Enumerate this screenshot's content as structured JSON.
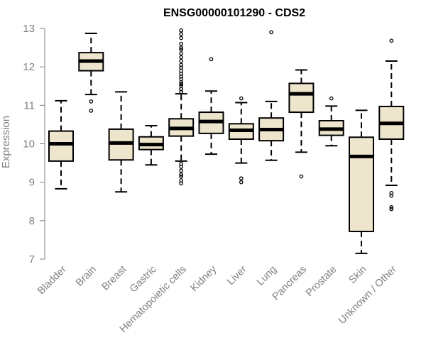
{
  "chart_data": {
    "type": "boxplot",
    "title": "ENSG00000101290 - CDS2",
    "xlabel": "",
    "ylabel": "Expression",
    "ylim": [
      7,
      13
    ],
    "yticks": [
      7,
      8,
      9,
      10,
      11,
      12,
      13
    ],
    "grid": false,
    "legend": "none",
    "colors": {
      "box_fill": "#ede6cc",
      "box_stroke": "#000000",
      "axis": "#808080",
      "label": "#808080"
    },
    "categories": [
      "Bladder",
      "Brain",
      "Breast",
      "Gastric",
      "Hematopoietic cells",
      "Kidney",
      "Liver",
      "Lung",
      "Pancreas",
      "Prostate",
      "Skin",
      "Unknown / Other"
    ],
    "boxes": [
      {
        "category": "Bladder",
        "whisker_low": 8.83,
        "q1": 9.55,
        "median": 10.0,
        "q3": 10.33,
        "whisker_high": 11.12,
        "outliers": []
      },
      {
        "category": "Brain",
        "whisker_low": 11.28,
        "q1": 11.9,
        "median": 12.15,
        "q3": 12.37,
        "whisker_high": 12.87,
        "outliers": [
          11.1,
          10.86
        ]
      },
      {
        "category": "Breast",
        "whisker_low": 8.75,
        "q1": 9.58,
        "median": 10.02,
        "q3": 10.38,
        "whisker_high": 11.35,
        "outliers": []
      },
      {
        "category": "Gastric",
        "whisker_low": 9.45,
        "q1": 9.85,
        "median": 9.98,
        "q3": 10.18,
        "whisker_high": 10.47,
        "outliers": []
      },
      {
        "category": "Hematopoietic cells",
        "whisker_low": 9.55,
        "q1": 10.2,
        "median": 10.4,
        "q3": 10.65,
        "whisker_high": 11.3,
        "outliers": [
          12.95,
          12.85,
          12.75,
          12.6,
          12.5,
          12.45,
          12.35,
          12.25,
          12.15,
          12.05,
          11.98,
          11.9,
          11.82,
          11.75,
          11.68,
          11.6,
          11.55,
          11.5,
          11.42,
          11.35,
          9.48,
          9.4,
          9.3,
          9.2,
          9.15,
          9.05,
          8.97
        ]
      },
      {
        "category": "Kidney",
        "whisker_low": 9.73,
        "q1": 10.27,
        "median": 10.58,
        "q3": 10.82,
        "whisker_high": 11.37,
        "outliers": [
          12.2
        ]
      },
      {
        "category": "Liver",
        "whisker_low": 9.5,
        "q1": 10.12,
        "median": 10.35,
        "q3": 10.52,
        "whisker_high": 11.07,
        "outliers": [
          11.18,
          9.1,
          9.0
        ]
      },
      {
        "category": "Lung",
        "whisker_low": 9.57,
        "q1": 10.08,
        "median": 10.37,
        "q3": 10.67,
        "whisker_high": 11.1,
        "outliers": [
          12.9
        ]
      },
      {
        "category": "Pancreas",
        "whisker_low": 9.78,
        "q1": 10.82,
        "median": 11.3,
        "q3": 11.57,
        "whisker_high": 11.92,
        "outliers": [
          9.15
        ]
      },
      {
        "category": "Prostate",
        "whisker_low": 9.95,
        "q1": 10.22,
        "median": 10.38,
        "q3": 10.6,
        "whisker_high": 10.98,
        "outliers": [
          11.18
        ]
      },
      {
        "category": "Skin",
        "whisker_low": 7.15,
        "q1": 7.72,
        "median": 9.67,
        "q3": 10.17,
        "whisker_high": 10.87,
        "outliers": []
      },
      {
        "category": "Unknown / Other",
        "whisker_low": 8.92,
        "q1": 10.12,
        "median": 10.53,
        "q3": 10.97,
        "whisker_high": 12.15,
        "outliers": [
          12.68,
          8.72,
          8.65,
          8.35,
          8.3
        ]
      }
    ]
  }
}
